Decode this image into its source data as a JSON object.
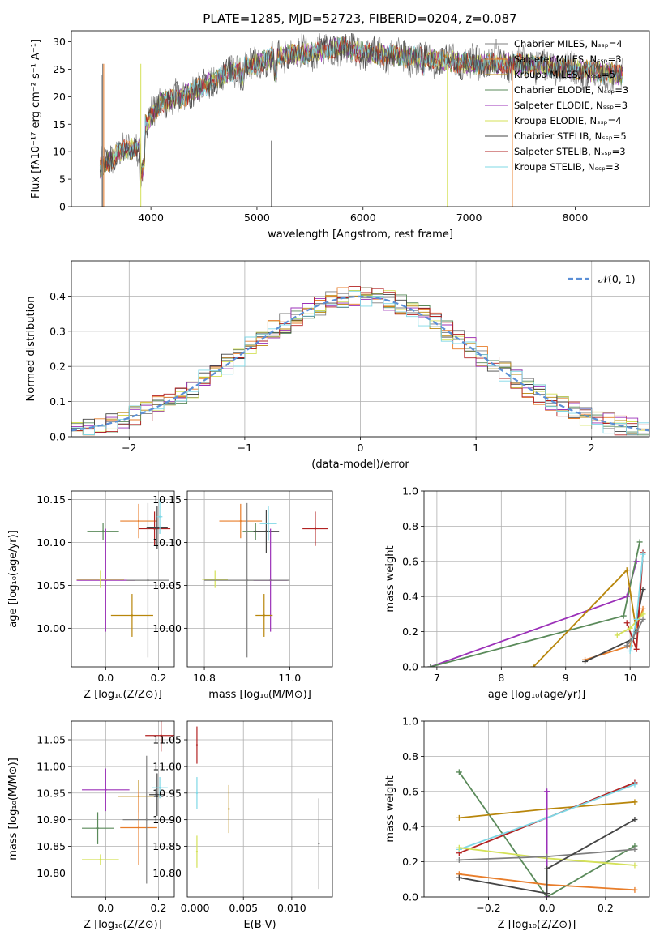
{
  "title": "PLATE=1285, MJD=52723, FIBERID=0204, z=0.087",
  "colors": [
    "#7f7f7f",
    "#e87d2a",
    "#b8860b",
    "#5a8a5a",
    "#9b30b8",
    "#d4e157",
    "#444444",
    "#b22222",
    "#7fd8e6"
  ],
  "chart_data": [
    {
      "type": "line",
      "name": "spectrum",
      "xlabel": "wavelength [Angstrom, rest frame]",
      "ylabel": "Flux [fλ10⁻¹⁷ erg cm⁻² s⁻¹ A⁻¹]",
      "xlim": [
        3250,
        8700
      ],
      "ylim": [
        0,
        32
      ],
      "xticks": [
        4000,
        5000,
        6000,
        7000,
        8000
      ],
      "yticks": [
        0,
        5,
        10,
        15,
        20,
        25,
        30
      ],
      "series_names": [
        "Chabrier MILES, Nₛₛₚ=4",
        "Salpeter MILES, Nₛₛₚ=3",
        "Kroupa MILES, Nₛₛₚ=5",
        "Chabrier ELODIE, Nₛₛₚ=3",
        "Salpeter ELODIE, Nₛₛₚ=3",
        "Kroupa ELODIE, Nₛₛₚ=4",
        "Chabrier STELIB, Nₛₛₚ=5",
        "Salpeter STELIB, Nₛₛₚ=3",
        "Kroupa STELIB, Nₛₛₚ=3"
      ],
      "continuum": [
        [
          3520,
          7
        ],
        [
          3700,
          10
        ],
        [
          3900,
          11
        ],
        [
          3950,
          15
        ],
        [
          4100,
          19
        ],
        [
          4300,
          20
        ],
        [
          4500,
          22
        ],
        [
          4800,
          25
        ],
        [
          5000,
          26
        ],
        [
          5200,
          27.5
        ],
        [
          5500,
          28
        ],
        [
          5800,
          29
        ],
        [
          6000,
          28
        ],
        [
          6300,
          27.5
        ],
        [
          6600,
          27
        ],
        [
          7000,
          26
        ],
        [
          7400,
          26
        ],
        [
          7800,
          25.5
        ],
        [
          8200,
          24.5
        ],
        [
          8450,
          24
        ]
      ]
    },
    {
      "type": "histogram",
      "name": "residuals",
      "xlabel": "(data-model)/error",
      "ylabel": "Normed distribution",
      "xlim": [
        -2.5,
        2.5
      ],
      "ylim": [
        0,
        0.5
      ],
      "xticks": [
        -2,
        -1,
        0,
        1,
        2
      ],
      "yticks": [
        0.0,
        0.1,
        0.2,
        0.3,
        0.4
      ],
      "legend": "𝒩(0, 1)",
      "bin_width": 0.1
    },
    {
      "type": "scatter",
      "name": "age-vs-Z",
      "xlabel": "Z [log₁₀(Z/Z⊙)]",
      "ylabel": "age  [log₁₀(age/yr)]",
      "xlim": [
        -0.13,
        0.26
      ],
      "ylim": [
        9.955,
        10.16
      ],
      "xticks": [
        0.0,
        0.2
      ],
      "yticks": [
        10.0,
        10.05,
        10.1,
        10.15
      ],
      "points": [
        {
          "x": 0.125,
          "y": 10.125,
          "ex": 0.07,
          "ey": 0.02,
          "c": 1
        },
        {
          "x": -0.01,
          "y": 10.113,
          "ex": 0.06,
          "ey": 0.01,
          "c": 3
        },
        {
          "x": 0.185,
          "y": 10.116,
          "ex": 0.06,
          "ey": 0.02,
          "c": 7
        },
        {
          "x": 0.195,
          "y": 10.117,
          "ex": 0.04,
          "ey": 0.025,
          "c": 6
        },
        {
          "x": 0.205,
          "y": 10.13,
          "ex": 0.01,
          "ey": 0.02,
          "c": 8
        },
        {
          "x": 0.0,
          "y": 10.056,
          "ex": 0.11,
          "ey": 0.06,
          "c": 4
        },
        {
          "x": -0.02,
          "y": 10.057,
          "ex": 0.09,
          "ey": 0.01,
          "c": 5
        },
        {
          "x": 0.16,
          "y": 10.056,
          "ex": 0.08,
          "ey": 0.09,
          "c": 0
        },
        {
          "x": 0.1,
          "y": 10.015,
          "ex": 0.08,
          "ey": 0.025,
          "c": 2
        }
      ]
    },
    {
      "type": "scatter",
      "name": "age-vs-mass",
      "xlabel": "mass [log₁₀(M/M⊙)]",
      "ylabel": "",
      "xlim": [
        10.76,
        11.1
      ],
      "ylim": [
        9.955,
        10.16
      ],
      "xticks": [
        10.8,
        11.0
      ],
      "yticks": [
        10.0,
        10.05,
        10.1,
        10.15
      ],
      "points": [
        {
          "x": 10.885,
          "y": 10.125,
          "ex": 0.05,
          "ey": 0.02,
          "c": 1
        },
        {
          "x": 10.92,
          "y": 10.113,
          "ex": 0.03,
          "ey": 0.01,
          "c": 3
        },
        {
          "x": 11.06,
          "y": 10.116,
          "ex": 0.03,
          "ey": 0.02,
          "c": 7
        },
        {
          "x": 10.945,
          "y": 10.113,
          "ex": 0.03,
          "ey": 0.025,
          "c": 6
        },
        {
          "x": 10.95,
          "y": 10.122,
          "ex": 0.02,
          "ey": 0.02,
          "c": 8
        },
        {
          "x": 10.955,
          "y": 10.056,
          "ex": 0.04,
          "ey": 0.06,
          "c": 4
        },
        {
          "x": 10.825,
          "y": 10.057,
          "ex": 0.03,
          "ey": 0.01,
          "c": 5
        },
        {
          "x": 10.9,
          "y": 10.056,
          "ex": 0.1,
          "ey": 0.09,
          "c": 0
        },
        {
          "x": 10.94,
          "y": 10.015,
          "ex": 0.02,
          "ey": 0.025,
          "c": 2
        }
      ]
    },
    {
      "type": "line",
      "name": "weight-vs-age",
      "xlabel": "age  [log₁₀(age/yr)]",
      "ylabel": "mass weight",
      "xlim": [
        6.8,
        10.3
      ],
      "ylim": [
        0,
        1
      ],
      "xticks": [
        7,
        8,
        9,
        10
      ],
      "yticks": [
        0.0,
        0.2,
        0.4,
        0.6,
        0.8,
        1.0
      ],
      "series": [
        {
          "c": 4,
          "x": [
            6.9,
            9.95,
            10.1
          ],
          "y": [
            0.0,
            0.4,
            0.6
          ]
        },
        {
          "c": 3,
          "x": [
            6.9,
            9.9,
            10.15
          ],
          "y": [
            0.0,
            0.29,
            0.71
          ]
        },
        {
          "c": 2,
          "x": [
            8.5,
            9.95,
            10.1
          ],
          "y": [
            0.0,
            0.55,
            0.2
          ]
        },
        {
          "c": 1,
          "x": [
            9.3,
            10.0,
            10.2
          ],
          "y": [
            0.04,
            0.12,
            0.33
          ]
        },
        {
          "c": 6,
          "x": [
            9.3,
            10.05,
            10.2
          ],
          "y": [
            0.03,
            0.16,
            0.44
          ]
        },
        {
          "c": 7,
          "x": [
            9.95,
            10.1,
            10.2
          ],
          "y": [
            0.25,
            0.1,
            0.65
          ]
        },
        {
          "c": 5,
          "x": [
            9.8,
            10.0,
            10.2
          ],
          "y": [
            0.18,
            0.22,
            0.3
          ]
        },
        {
          "c": 8,
          "x": [
            10.0,
            10.1,
            10.2
          ],
          "y": [
            0.09,
            0.27,
            0.64
          ]
        },
        {
          "c": 0,
          "x": [
            9.95,
            10.1,
            10.2
          ],
          "y": [
            0.12,
            0.2,
            0.27
          ]
        }
      ]
    },
    {
      "type": "scatter",
      "name": "mass-vs-Z",
      "xlabel": "Z [log₁₀(Z/Z⊙)]",
      "ylabel": "mass [log₁₀(M/M⊙)]",
      "xlim": [
        -0.13,
        0.26
      ],
      "ylim": [
        10.755,
        11.085
      ],
      "xticks": [
        0.0,
        0.2
      ],
      "yticks": [
        10.8,
        10.85,
        10.9,
        10.95,
        11.0,
        11.05
      ],
      "points": [
        {
          "x": 0.21,
          "y": 11.058,
          "ex": 0.06,
          "ey": 0.03,
          "c": 7
        },
        {
          "x": 0.0,
          "y": 10.956,
          "ex": 0.09,
          "ey": 0.04,
          "c": 4
        },
        {
          "x": 0.125,
          "y": 10.944,
          "ex": 0.08,
          "ey": 0.03,
          "c": 2
        },
        {
          "x": 0.195,
          "y": 10.947,
          "ex": 0.03,
          "ey": 0.04,
          "c": 6
        },
        {
          "x": 0.205,
          "y": 10.96,
          "ex": 0.03,
          "ey": 0.02,
          "c": 8
        },
        {
          "x": -0.03,
          "y": 10.884,
          "ex": 0.06,
          "ey": 0.03,
          "c": 3
        },
        {
          "x": 0.125,
          "y": 10.885,
          "ex": 0.07,
          "ey": 0.07,
          "c": 1
        },
        {
          "x": 0.155,
          "y": 10.9,
          "ex": 0.09,
          "ey": 0.12,
          "c": 0
        },
        {
          "x": -0.02,
          "y": 10.825,
          "ex": 0.07,
          "ey": 0.01,
          "c": 5
        }
      ]
    },
    {
      "type": "scatter",
      "name": "mass-vs-ebv",
      "xlabel": "E(B-V)",
      "ylabel": "",
      "xlim": [
        -0.0008,
        0.0142
      ],
      "ylim": [
        10.755,
        11.085
      ],
      "xticks": [
        0.0,
        0.005,
        0.01
      ],
      "yticks": [
        10.8,
        10.85,
        10.9,
        10.95,
        11.0,
        11.05
      ],
      "points": [
        {
          "x": 0.0002,
          "y": 11.04,
          "ex": 0,
          "ey": 0.035,
          "c": 7
        },
        {
          "x": 0.0002,
          "y": 10.95,
          "ex": 0,
          "ey": 0.03,
          "c": 8
        },
        {
          "x": 0.0002,
          "y": 10.84,
          "ex": 0,
          "ey": 0.03,
          "c": 5
        },
        {
          "x": 0.0035,
          "y": 10.92,
          "ex": 0,
          "ey": 0.045,
          "c": 2
        },
        {
          "x": 0.0128,
          "y": 10.855,
          "ex": 0,
          "ey": 0.085,
          "c": 0
        }
      ]
    },
    {
      "type": "line",
      "name": "weight-vs-Z",
      "xlabel": "Z [log₁₀(Z/Z⊙)]",
      "ylabel": "mass weight",
      "xlim": [
        -0.42,
        0.35
      ],
      "ylim": [
        0,
        1
      ],
      "xticks": [
        -0.2,
        0.0,
        0.2
      ],
      "yticks": [
        0.0,
        0.2,
        0.4,
        0.6,
        0.8,
        1.0
      ],
      "series": [
        {
          "c": 3,
          "x": [
            -0.3,
            0.0,
            0.3
          ],
          "y": [
            0.71,
            0.0,
            0.29
          ]
        },
        {
          "c": 2,
          "x": [
            -0.3,
            0.0,
            0.3
          ],
          "y": [
            0.45,
            0.5,
            0.54
          ]
        },
        {
          "c": 7,
          "x": [
            -0.3,
            0.0,
            0.3
          ],
          "y": [
            0.25,
            0.45,
            0.65
          ]
        },
        {
          "c": 8,
          "x": [
            -0.3,
            0.0,
            0.3
          ],
          "y": [
            0.27,
            0.45,
            0.64
          ]
        },
        {
          "c": 5,
          "x": [
            -0.3,
            0.0,
            0.3
          ],
          "y": [
            0.28,
            0.22,
            0.18
          ]
        },
        {
          "c": 4,
          "x": [
            0.0,
            0.0
          ],
          "y": [
            0.0,
            0.6
          ]
        },
        {
          "c": 0,
          "x": [
            -0.3,
            0.0,
            0.3
          ],
          "y": [
            0.21,
            0.23,
            0.27
          ]
        },
        {
          "c": 1,
          "x": [
            -0.3,
            0.0,
            0.3
          ],
          "y": [
            0.13,
            0.07,
            0.04
          ]
        },
        {
          "c": 6,
          "x": [
            -0.3,
            0.0,
            0.0,
            0.3
          ],
          "y": [
            0.11,
            0.02,
            0.16,
            0.44
          ]
        }
      ]
    }
  ]
}
